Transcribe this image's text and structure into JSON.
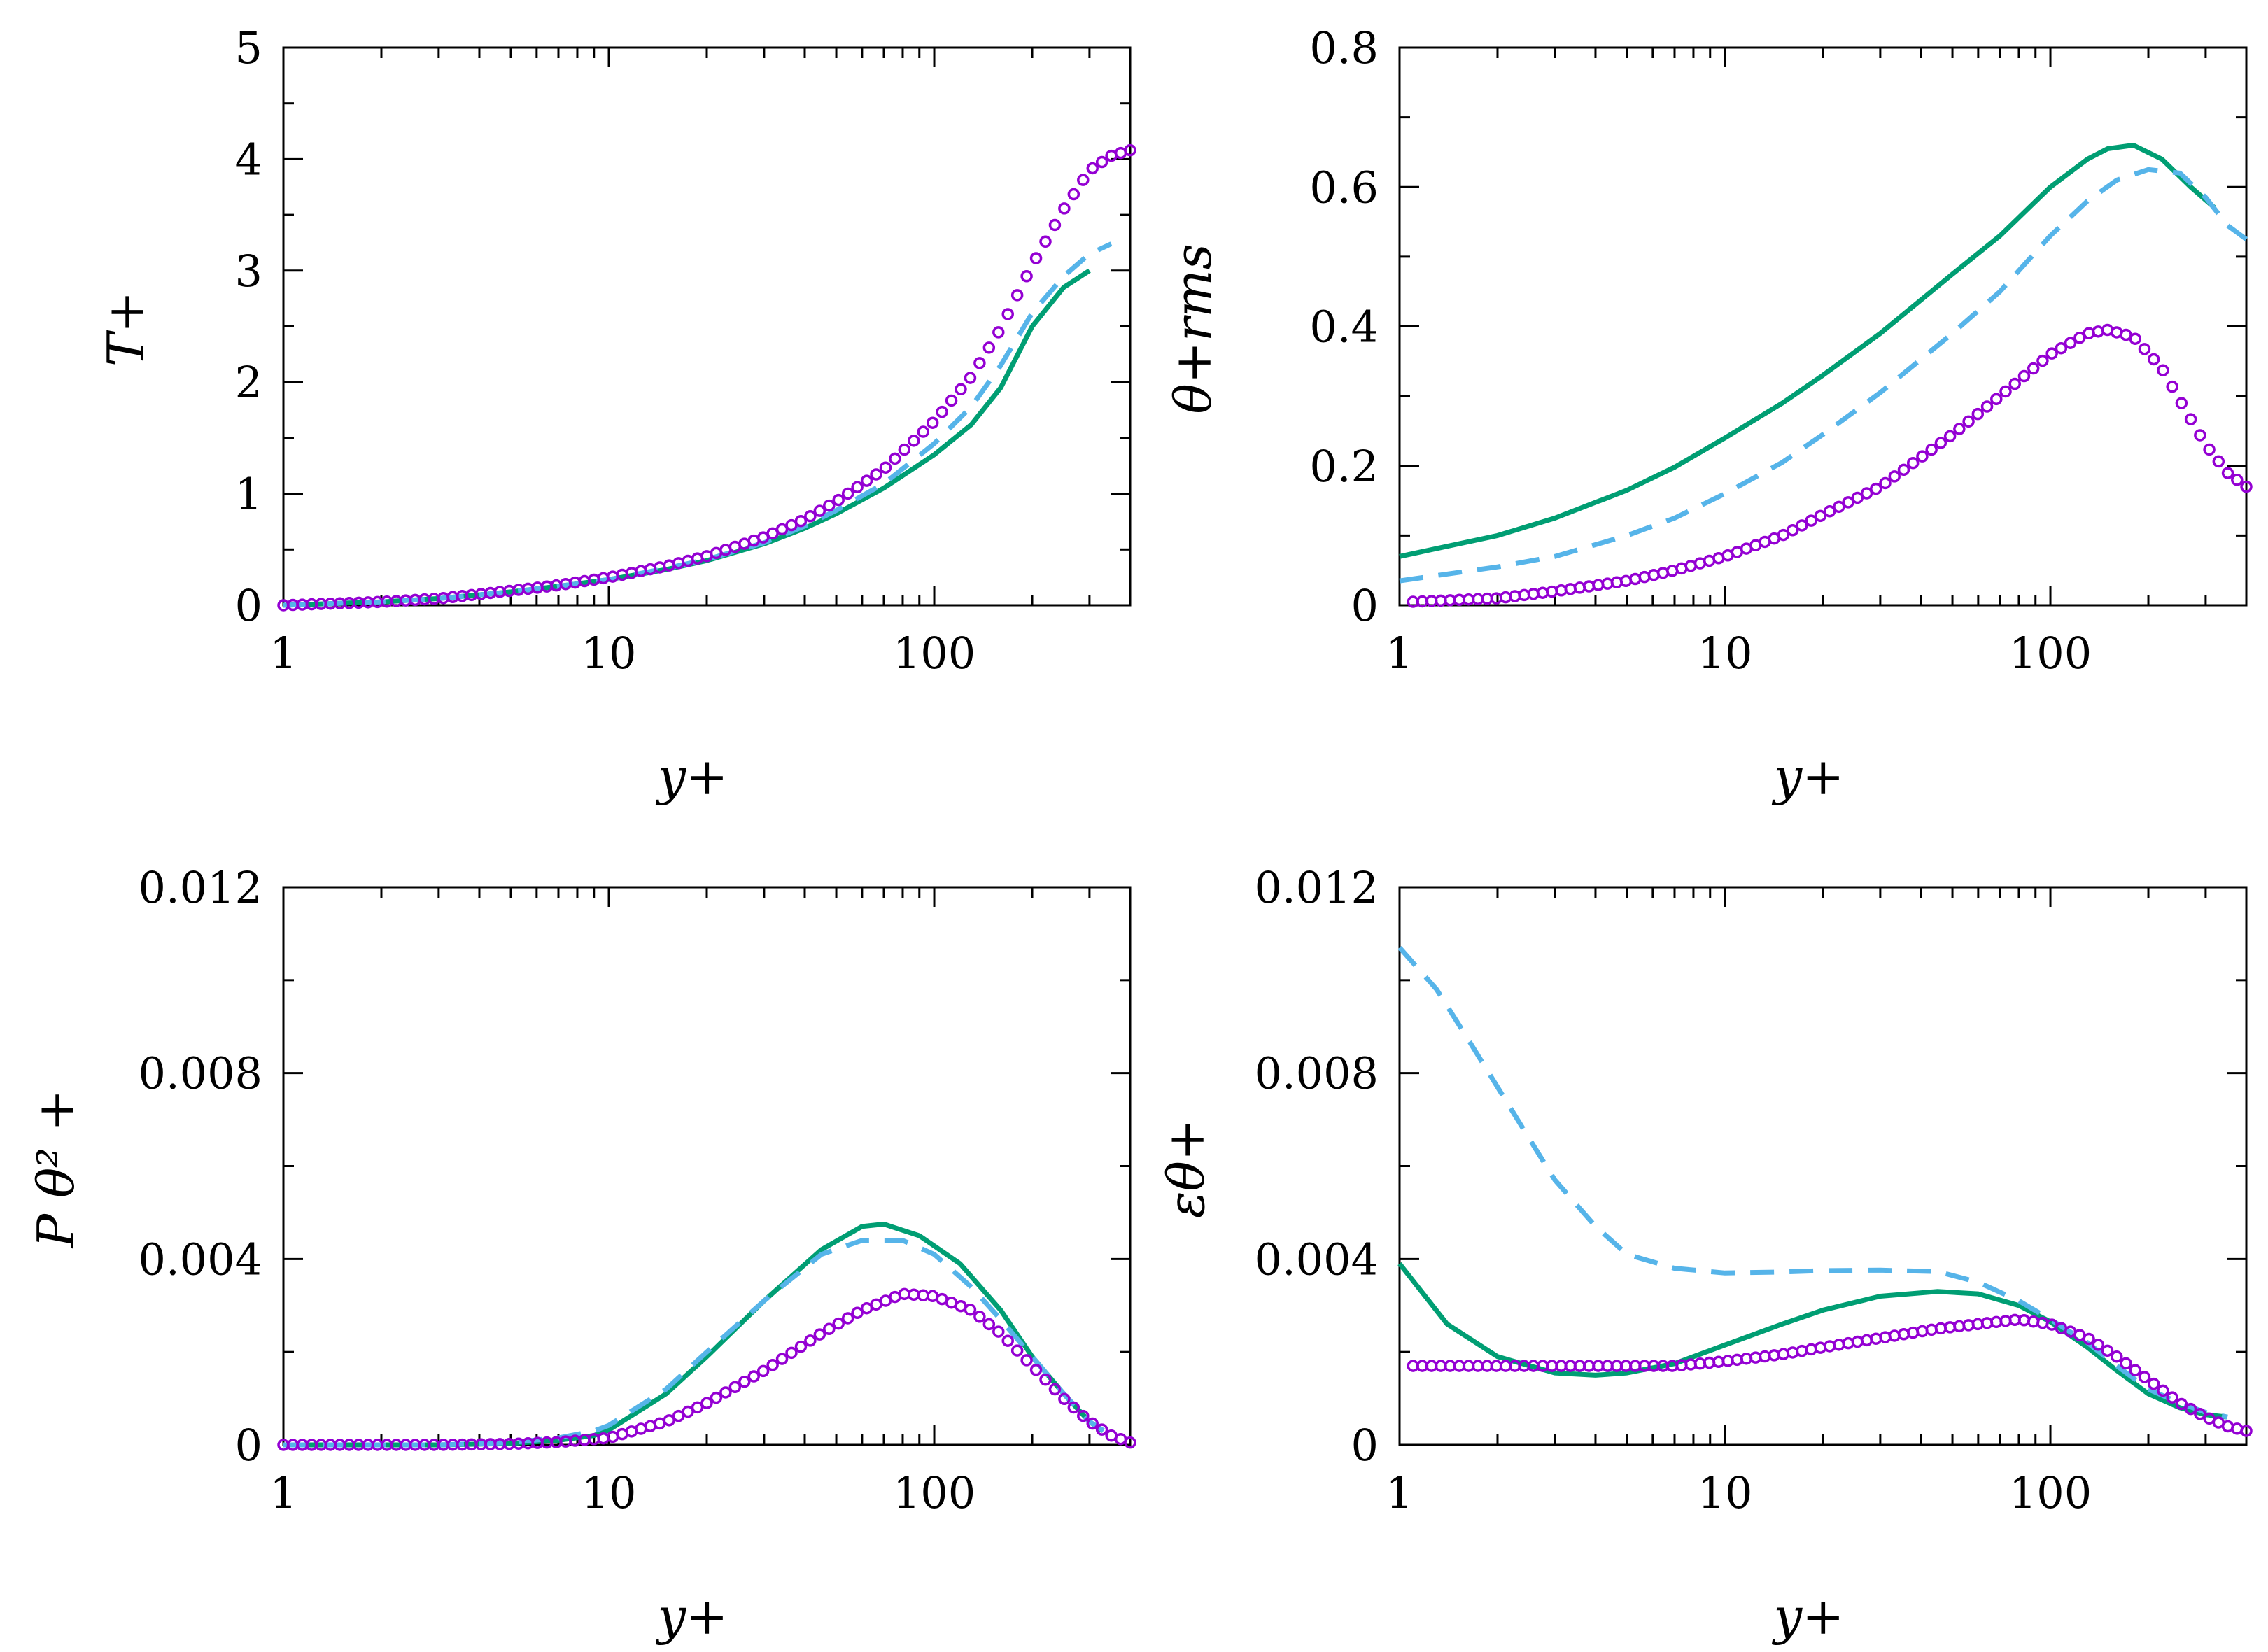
{
  "colors": {
    "green": "#009e73",
    "blue": "#56b4e9",
    "purple": "#9400d3"
  },
  "chart_data": [
    {
      "type": "line",
      "id": "T",
      "xlabel": "y+",
      "ylabel": "T+",
      "xscale": "log",
      "xlim": [
        1,
        400
      ],
      "ylim": [
        0,
        5
      ],
      "xticks": [
        1,
        10,
        100
      ],
      "xtick_labels": [
        "1",
        "10",
        "100"
      ],
      "yticks": [
        0,
        1,
        2,
        3,
        4,
        5
      ],
      "ytick_labels": [
        "0",
        "1",
        "2",
        "3",
        "4",
        "5"
      ],
      "series": [
        {
          "name": "green-solid",
          "style": "solid",
          "color": "#009e73",
          "x": [
            1,
            2,
            3,
            5,
            7,
            10,
            15,
            20,
            30,
            40,
            50,
            70,
            100,
            130,
            160,
            200,
            250,
            300
          ],
          "y": [
            0.0,
            0.03,
            0.06,
            0.12,
            0.17,
            0.23,
            0.32,
            0.4,
            0.55,
            0.69,
            0.82,
            1.05,
            1.35,
            1.62,
            1.95,
            2.5,
            2.85,
            3.0
          ]
        },
        {
          "name": "blue-dashed",
          "style": "dashed",
          "color": "#56b4e9",
          "x": [
            1,
            2,
            3,
            5,
            7,
            10,
            15,
            20,
            30,
            40,
            50,
            70,
            100,
            130,
            160,
            200,
            250,
            300,
            350
          ],
          "y": [
            0.0,
            0.03,
            0.06,
            0.12,
            0.17,
            0.23,
            0.33,
            0.41,
            0.56,
            0.71,
            0.85,
            1.09,
            1.45,
            1.78,
            2.15,
            2.62,
            2.95,
            3.15,
            3.24
          ]
        },
        {
          "name": "purple-circles",
          "style": "circles",
          "color": "#9400d3",
          "x": [
            1,
            2,
            3,
            5,
            7,
            10,
            15,
            20,
            30,
            40,
            50,
            70,
            100,
            130,
            160,
            200,
            250,
            300,
            350,
            400
          ],
          "y": [
            0.0,
            0.03,
            0.06,
            0.13,
            0.18,
            0.25,
            0.35,
            0.44,
            0.61,
            0.77,
            0.93,
            1.22,
            1.65,
            2.05,
            2.48,
            3.05,
            3.55,
            3.9,
            4.03,
            4.08
          ]
        }
      ]
    },
    {
      "type": "line",
      "id": "theta_rms",
      "xlabel": "y+",
      "ylabel": "θ+rms",
      "xscale": "log",
      "xlim": [
        1,
        400
      ],
      "ylim": [
        0,
        0.8
      ],
      "xticks": [
        1,
        10,
        100
      ],
      "xtick_labels": [
        "1",
        "10",
        "100"
      ],
      "yticks": [
        0,
        0.2,
        0.4,
        0.6,
        0.8
      ],
      "ytick_labels": [
        "0",
        "0.2",
        "0.4",
        "0.6",
        "0.8"
      ],
      "series": [
        {
          "name": "green-solid",
          "style": "solid",
          "color": "#009e73",
          "x": [
            1,
            2,
            3,
            5,
            7,
            10,
            15,
            20,
            30,
            50,
            70,
            100,
            130,
            150,
            180,
            220,
            270,
            320
          ],
          "y": [
            0.07,
            0.1,
            0.125,
            0.165,
            0.198,
            0.24,
            0.29,
            0.33,
            0.39,
            0.475,
            0.53,
            0.6,
            0.64,
            0.655,
            0.66,
            0.64,
            0.6,
            0.57
          ]
        },
        {
          "name": "blue-dashed",
          "style": "dashed",
          "color": "#56b4e9",
          "x": [
            1,
            2,
            3,
            5,
            7,
            10,
            15,
            20,
            30,
            50,
            70,
            100,
            130,
            160,
            200,
            250,
            300,
            350,
            400
          ],
          "y": [
            0.035,
            0.055,
            0.07,
            0.1,
            0.125,
            0.16,
            0.205,
            0.245,
            0.305,
            0.39,
            0.45,
            0.53,
            0.58,
            0.61,
            0.625,
            0.62,
            0.585,
            0.545,
            0.525
          ]
        },
        {
          "name": "purple-circles",
          "style": "circles",
          "color": "#9400d3",
          "x": [
            1.1,
            2,
            3,
            5,
            7,
            10,
            15,
            20,
            30,
            50,
            70,
            100,
            130,
            150,
            180,
            220,
            260,
            300,
            350,
            400
          ],
          "y": [
            0.005,
            0.01,
            0.02,
            0.035,
            0.05,
            0.07,
            0.1,
            0.13,
            0.17,
            0.245,
            0.3,
            0.36,
            0.39,
            0.395,
            0.385,
            0.34,
            0.28,
            0.23,
            0.19,
            0.17
          ]
        }
      ]
    },
    {
      "type": "line",
      "id": "P_theta2",
      "xlabel": "y+",
      "ylabel": "P θ² +",
      "xscale": "log",
      "xlim": [
        1,
        400
      ],
      "ylim": [
        0,
        0.012
      ],
      "xticks": [
        1,
        10,
        100
      ],
      "xtick_labels": [
        "1",
        "10",
        "100"
      ],
      "yticks": [
        0,
        0.004,
        0.008,
        0.012
      ],
      "ytick_labels": [
        "0",
        "0.004",
        "0.008",
        "0.012"
      ],
      "series": [
        {
          "name": "green-solid",
          "style": "solid",
          "color": "#009e73",
          "x": [
            1,
            3,
            5,
            7,
            9,
            10,
            15,
            20,
            30,
            45,
            60,
            70,
            90,
            120,
            160,
            200,
            250,
            300,
            330
          ],
          "y": [
            0.0,
            0.0,
            3e-05,
            0.0001,
            0.0002,
            0.00032,
            0.0011,
            0.0019,
            0.0031,
            0.0042,
            0.0047,
            0.00475,
            0.0045,
            0.0039,
            0.0029,
            0.0019,
            0.0011,
            0.0005,
            0.0003
          ]
        },
        {
          "name": "blue-dashed",
          "style": "dashed",
          "color": "#56b4e9",
          "x": [
            1,
            3,
            5,
            7,
            9,
            10,
            15,
            20,
            30,
            45,
            60,
            80,
            100,
            130,
            160,
            200,
            250,
            300,
            350
          ],
          "y": [
            0.0,
            0.0,
            5e-05,
            0.00015,
            0.0003,
            0.00042,
            0.0012,
            0.002,
            0.0031,
            0.0041,
            0.0044,
            0.0044,
            0.0041,
            0.0034,
            0.0027,
            0.0019,
            0.0011,
            0.0005,
            0.0002
          ]
        },
        {
          "name": "purple-circles",
          "style": "circles",
          "color": "#9400d3",
          "x": [
            1,
            2,
            3,
            5,
            7,
            10,
            15,
            20,
            30,
            45,
            60,
            80,
            100,
            130,
            160,
            200,
            250,
            300,
            350,
            400
          ],
          "y": [
            0.0,
            0.0,
            0.0,
            2e-05,
            6e-05,
            0.00015,
            0.0005,
            0.0009,
            0.0016,
            0.0024,
            0.0029,
            0.00325,
            0.0032,
            0.0029,
            0.0024,
            0.0017,
            0.001,
            0.0005,
            0.0002,
            5e-05
          ]
        }
      ]
    },
    {
      "type": "line",
      "id": "eps_theta",
      "xlabel": "y+",
      "ylabel": "εθ+",
      "xscale": "log",
      "xlim": [
        1,
        400
      ],
      "ylim": [
        0,
        0.012
      ],
      "xticks": [
        1,
        10,
        100
      ],
      "xtick_labels": [
        "1",
        "10",
        "100"
      ],
      "yticks": [
        0,
        0.004,
        0.008,
        0.012
      ],
      "ytick_labels": [
        "0",
        "0.004",
        "0.008",
        "0.012"
      ],
      "series": [
        {
          "name": "green-solid",
          "style": "solid",
          "color": "#009e73",
          "x": [
            1,
            1.4,
            2,
            3,
            4,
            5,
            7,
            10,
            15,
            20,
            30,
            45,
            60,
            80,
            100,
            130,
            160,
            200,
            250,
            300,
            350
          ],
          "y": [
            0.0039,
            0.0026,
            0.0019,
            0.00155,
            0.0015,
            0.00155,
            0.00175,
            0.00215,
            0.0026,
            0.0029,
            0.0032,
            0.0033,
            0.00325,
            0.003,
            0.00265,
            0.0021,
            0.0016,
            0.0011,
            0.0008,
            0.00065,
            0.0006
          ]
        },
        {
          "name": "blue-dashed",
          "style": "dashed",
          "color": "#56b4e9",
          "x": [
            1,
            1.3,
            1.6,
            2,
            2.5,
            3,
            4,
            5,
            7,
            10,
            15,
            20,
            30,
            45,
            60,
            80,
            100,
            130,
            160,
            200,
            250,
            300,
            350
          ],
          "y": [
            0.0107,
            0.0098,
            0.0088,
            0.0077,
            0.0066,
            0.0057,
            0.0047,
            0.0041,
            0.0038,
            0.0037,
            0.00372,
            0.00375,
            0.00376,
            0.00373,
            0.0035,
            0.0031,
            0.0027,
            0.0022,
            0.0017,
            0.0012,
            0.0009,
            0.0007,
            0.0006
          ]
        },
        {
          "name": "purple-circles",
          "style": "circles",
          "color": "#9400d3",
          "x": [
            1.1,
            1.5,
            2,
            3,
            4,
            5,
            7,
            10,
            15,
            20,
            30,
            45,
            60,
            80,
            100,
            130,
            160,
            200,
            250,
            300,
            350,
            400
          ],
          "y": [
            0.0017,
            0.0017,
            0.0017,
            0.0017,
            0.0017,
            0.0017,
            0.0017,
            0.0018,
            0.00195,
            0.0021,
            0.0023,
            0.0025,
            0.0026,
            0.0027,
            0.0026,
            0.0023,
            0.0019,
            0.0014,
            0.0009,
            0.0006,
            0.0004,
            0.0003
          ]
        }
      ]
    }
  ]
}
